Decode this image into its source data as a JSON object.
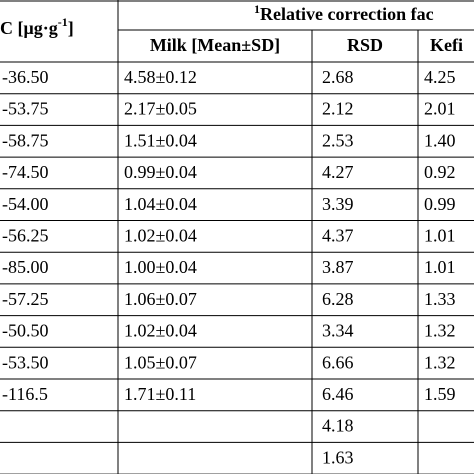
{
  "header": {
    "group_note": "1",
    "group_title": "Relative correction fac",
    "unit_main": "C [μg·g",
    "unit_sup": "-1",
    "unit_end": "]",
    "columns": [
      "Milk [Mean±SD]",
      "RSD",
      "Kefi"
    ]
  },
  "table": {
    "rows": [
      [
        "-36.50",
        "4.58±0.12",
        "2.68",
        "4.25"
      ],
      [
        "-53.75",
        "2.17±0.05",
        "2.12",
        "2.01"
      ],
      [
        "-58.75",
        "1.51±0.04",
        "2.53",
        "1.40"
      ],
      [
        "-74.50",
        "0.99±0.04",
        "4.27",
        "0.92"
      ],
      [
        "-54.00",
        "1.04±0.04",
        "3.39",
        "0.99"
      ],
      [
        "-56.25",
        "1.02±0.04",
        "4.37",
        "1.01"
      ],
      [
        "-85.00",
        "1.00±0.04",
        "3.87",
        "1.01"
      ],
      [
        "-57.25",
        "1.06±0.07",
        "6.28",
        "1.33"
      ],
      [
        "-50.50",
        "1.02±0.04",
        "3.34",
        "1.32"
      ],
      [
        "-53.50",
        "1.05±0.07",
        "6.66",
        "1.32"
      ],
      [
        "-116.5",
        "1.71±0.11",
        "6.46",
        "1.59"
      ],
      [
        null,
        null,
        "4.18",
        null
      ],
      [
        null,
        null,
        "1.63",
        null
      ]
    ]
  }
}
